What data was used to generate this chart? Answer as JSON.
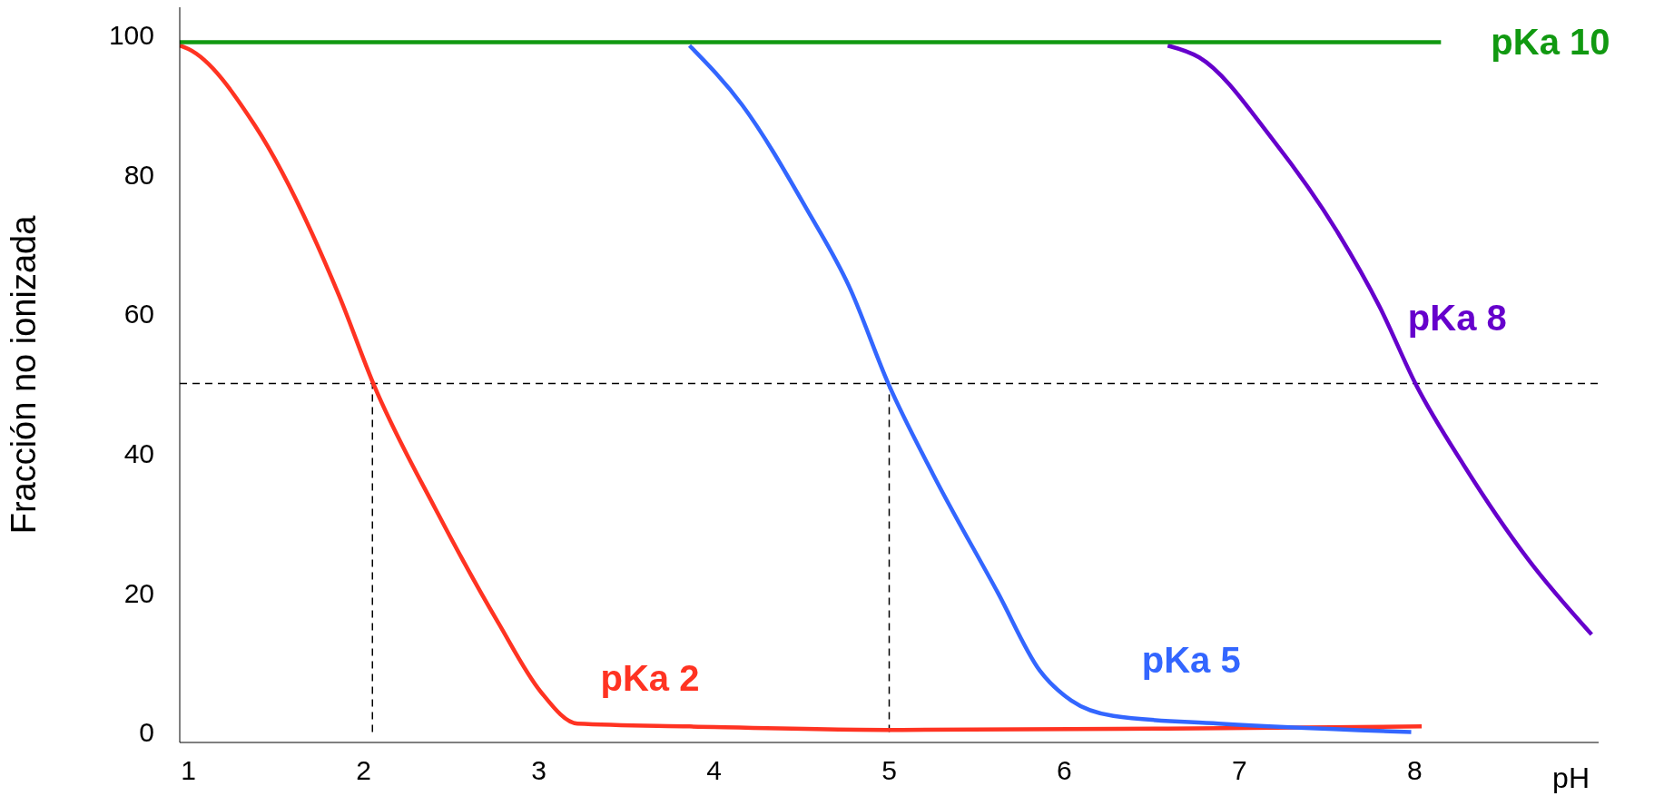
{
  "chart_data": {
    "type": "line",
    "xlabel": "pH",
    "ylabel": "Fracción no ionizada",
    "xlim": [
      0.95,
      9.05
    ],
    "xticks": [
      1,
      2,
      3,
      4,
      5,
      6,
      7,
      8
    ],
    "ylim": [
      -1.5,
      104
    ],
    "yticks": [
      0,
      20,
      40,
      60,
      80,
      100
    ],
    "grid": false,
    "legend": false,
    "marker": "none",
    "line_style": "solid",
    "series": [
      {
        "name": "pKa 2",
        "color": "#ff3322",
        "x": [
          0.95,
          1,
          1.38,
          1.86,
          2.06,
          2.41,
          2.77,
          3.01,
          3.22,
          3.86,
          5.07,
          6.59,
          8.04
        ],
        "values": [
          98.5,
          98,
          87,
          62.6,
          49.7,
          32,
          15.6,
          5.8,
          1.2,
          0.8,
          0.3,
          0.5,
          0.8
        ]
      },
      {
        "name": "pKa 5",
        "color": "#3366ff",
        "x": [
          3.86,
          4.16,
          4.53,
          4.77,
          5,
          5.25,
          5.62,
          5.86,
          6.04,
          6.28,
          6.88,
          7.98
        ],
        "values": [
          98.5,
          90,
          75,
          64,
          49.7,
          37,
          20,
          8.8,
          4.5,
          2.3,
          1.2,
          0
        ]
      },
      {
        "name": "pKa 8",
        "color": "#6600cc",
        "x": [
          6.59,
          6.77,
          7.19,
          7.56,
          7.8,
          8.01,
          8.28,
          8.65,
          9.01
        ],
        "values": [
          98.5,
          96.8,
          85,
          71.7,
          61,
          49.7,
          38.3,
          24.7,
          14
        ]
      },
      {
        "name": "pKa 10",
        "color": "#119911",
        "x": [
          0.95,
          8.15
        ],
        "values": [
          99,
          99
        ]
      }
    ],
    "ref_lines": [
      {
        "axis": "y",
        "value": 50,
        "line_style": "dashed",
        "color": "#000000"
      },
      {
        "axis": "x",
        "value": 2.05,
        "line_style": "dashed",
        "color": "#000000"
      },
      {
        "axis": "x",
        "value": 5,
        "line_style": "dashed",
        "color": "#000000"
      }
    ]
  }
}
